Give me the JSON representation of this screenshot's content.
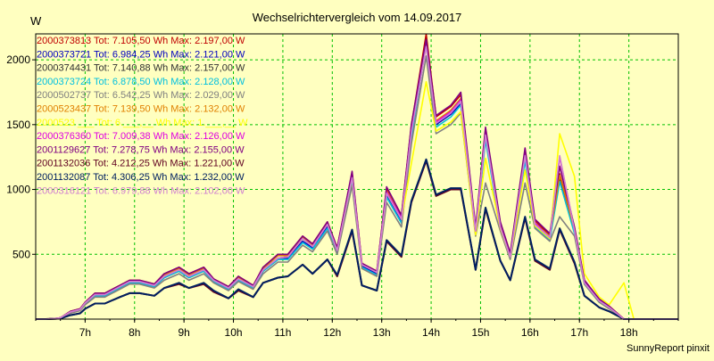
{
  "chart_data": {
    "type": "line",
    "title": "Wechselrichtervergleich vom 14.09.2017",
    "ylabel": "W",
    "footer": "SunnyReport pinxit",
    "xlim": [
      6.0,
      19.0
    ],
    "ylim": [
      0,
      2200
    ],
    "xticks": [
      {
        "x": 7,
        "label": "7h"
      },
      {
        "x": 8,
        "label": "8h"
      },
      {
        "x": 9,
        "label": "9h"
      },
      {
        "x": 10,
        "label": "10h"
      },
      {
        "x": 11,
        "label": "11h"
      },
      {
        "x": 12,
        "label": "12h"
      },
      {
        "x": 13,
        "label": "13h"
      },
      {
        "x": 14,
        "label": "14h"
      },
      {
        "x": 15,
        "label": "15h"
      },
      {
        "x": 16,
        "label": "16h"
      },
      {
        "x": 17,
        "label": "17h"
      },
      {
        "x": 18,
        "label": "18h"
      }
    ],
    "yticks": [
      {
        "y": 500,
        "label": "500"
      },
      {
        "y": 1000,
        "label": "1000"
      },
      {
        "y": 1500,
        "label": "1500"
      },
      {
        "y": 2000,
        "label": "2000"
      }
    ],
    "grid": true,
    "legend_position": "top-left",
    "x": [
      6.0,
      6.2,
      6.4,
      6.5,
      6.7,
      6.9,
      7.0,
      7.2,
      7.4,
      7.7,
      7.9,
      8.1,
      8.4,
      8.6,
      8.9,
      9.1,
      9.4,
      9.6,
      9.9,
      10.1,
      10.4,
      10.6,
      10.9,
      11.1,
      11.4,
      11.6,
      11.9,
      12.1,
      12.4,
      12.6,
      12.9,
      13.1,
      13.4,
      13.6,
      13.9,
      14.1,
      14.4,
      14.6,
      14.9,
      15.1,
      15.4,
      15.6,
      15.9,
      16.1,
      16.4,
      16.6,
      16.9,
      17.1,
      17.4,
      17.6,
      17.9,
      18.1,
      18.3,
      18.5,
      19.0
    ],
    "series": [
      {
        "name": "2000373813",
        "label": "2000373813 Tot: 7.105,50 Wh Max: 2.197,00 W",
        "color": "#c00000",
        "values": [
          0,
          0,
          5,
          10,
          60,
          80,
          130,
          200,
          200,
          260,
          300,
          300,
          270,
          350,
          400,
          350,
          400,
          310,
          250,
          330,
          260,
          400,
          500,
          500,
          640,
          580,
          750,
          550,
          1130,
          430,
          370,
          1010,
          800,
          1490,
          2197,
          1560,
          1640,
          1730,
          700,
          1460,
          740,
          500,
          1300,
          760,
          650,
          1120,
          700,
          300,
          150,
          100,
          0,
          0,
          0,
          0,
          0
        ]
      },
      {
        "name": "2000373721",
        "label": "2000373721 Tot: 6.984,25 Wh Max: 2.121,00 W",
        "color": "#0000c0",
        "values": [
          0,
          0,
          5,
          10,
          50,
          70,
          120,
          180,
          180,
          240,
          280,
          280,
          250,
          320,
          370,
          320,
          370,
          290,
          230,
          300,
          240,
          370,
          460,
          470,
          600,
          550,
          710,
          520,
          1080,
          410,
          350,
          960,
          760,
          1420,
          2121,
          1500,
          1580,
          1660,
          670,
          1400,
          710,
          480,
          1240,
          720,
          620,
          1080,
          670,
          280,
          140,
          90,
          0,
          0,
          0,
          0,
          0
        ]
      },
      {
        "name": "2000374431",
        "label": "2000374431 Tot: 7.140,88 Wh Max: 2.157,00 W",
        "color": "#303030",
        "values": [
          0,
          0,
          5,
          10,
          55,
          75,
          125,
          190,
          190,
          250,
          290,
          290,
          260,
          330,
          380,
          330,
          380,
          300,
          240,
          310,
          250,
          380,
          470,
          480,
          620,
          560,
          730,
          530,
          1100,
          420,
          360,
          980,
          780,
          1450,
          2157,
          1520,
          1610,
          1700,
          690,
          1430,
          720,
          490,
          1270,
          740,
          640,
          1100,
          690,
          290,
          145,
          95,
          0,
          0,
          0,
          0,
          0
        ]
      },
      {
        "name": "2000373724",
        "label": "2000373724 Tot: 6.878,50 Wh Max: 2.128,00 W",
        "color": "#00c0e0",
        "values": [
          0,
          0,
          4,
          8,
          50,
          70,
          120,
          180,
          180,
          240,
          280,
          280,
          250,
          320,
          370,
          320,
          370,
          290,
          230,
          300,
          240,
          370,
          460,
          460,
          590,
          540,
          700,
          510,
          1060,
          400,
          340,
          940,
          740,
          1400,
          2128,
          1480,
          1560,
          1650,
          660,
          1380,
          700,
          470,
          1220,
          710,
          610,
          1060,
          660,
          270,
          130,
          85,
          0,
          0,
          0,
          0,
          0
        ]
      },
      {
        "name": "2000502737",
        "label": "2000502737 Tot: 6.542,25 Wh Max: 2.029,00 W",
        "color": "#808080",
        "values": [
          0,
          0,
          4,
          8,
          45,
          65,
          110,
          170,
          170,
          230,
          270,
          270,
          240,
          300,
          350,
          300,
          350,
          280,
          220,
          290,
          230,
          350,
          440,
          440,
          570,
          520,
          680,
          500,
          1030,
          390,
          330,
          900,
          710,
          1350,
          2029,
          1430,
          1500,
          1590,
          640,
          1050,
          680,
          460,
          1050,
          700,
          600,
          790,
          640,
          270,
          130,
          80,
          0,
          0,
          0,
          0,
          0
        ]
      },
      {
        "name": "2000523437",
        "label": "2000523437 Tot: 7.139,50 Wh Max: 2.132,00 W",
        "color": "#e08000",
        "values": [
          0,
          0,
          5,
          10,
          60,
          80,
          130,
          200,
          200,
          260,
          300,
          300,
          270,
          340,
          390,
          340,
          390,
          310,
          250,
          320,
          260,
          390,
          490,
          490,
          630,
          570,
          740,
          540,
          1110,
          420,
          360,
          990,
          790,
          1460,
          2132,
          1530,
          1610,
          1700,
          690,
          1440,
          720,
          490,
          1280,
          740,
          640,
          1110,
          690,
          290,
          150,
          100,
          0,
          0,
          0,
          0,
          0
        ]
      },
      {
        "name": "2000523",
        "label": "2000523 ___ Tot: 6.___,__ Wh Max: 1.___,__ W",
        "color": "#ffff00",
        "values": [
          0,
          0,
          5,
          10,
          55,
          75,
          125,
          190,
          190,
          250,
          290,
          290,
          260,
          330,
          380,
          330,
          380,
          300,
          240,
          310,
          250,
          380,
          470,
          480,
          620,
          560,
          730,
          530,
          1090,
          420,
          360,
          970,
          770,
          1200,
          1830,
          1450,
          1520,
          1600,
          650,
          1240,
          700,
          480,
          1150,
          720,
          620,
          1430,
          1100,
          350,
          170,
          110,
          280,
          0,
          0,
          0,
          0
        ]
      },
      {
        "name": "2000376360",
        "label": "2000376360 Tot: 7.009,38 Wh Max: 2.126,00 W",
        "color": "#e000e0",
        "values": [
          0,
          0,
          5,
          10,
          55,
          75,
          125,
          190,
          190,
          250,
          290,
          290,
          260,
          330,
          380,
          330,
          380,
          300,
          240,
          310,
          250,
          380,
          470,
          480,
          620,
          560,
          730,
          530,
          1100,
          420,
          360,
          980,
          780,
          1450,
          2126,
          1520,
          1600,
          1690,
          680,
          1430,
          710,
          490,
          1270,
          740,
          630,
          1250,
          690,
          290,
          145,
          95,
          0,
          0,
          0,
          0,
          0
        ]
      },
      {
        "name": "2001129627",
        "label": "2001129627 Tot: 7.278,75 Wh Max: 2.155,00 W",
        "color": "#800080",
        "values": [
          0,
          0,
          5,
          10,
          60,
          80,
          130,
          200,
          200,
          260,
          300,
          300,
          270,
          350,
          400,
          350,
          400,
          310,
          250,
          330,
          260,
          400,
          500,
          500,
          640,
          580,
          750,
          550,
          1140,
          430,
          370,
          1020,
          800,
          1500,
          2155,
          1570,
          1650,
          1750,
          710,
          1480,
          750,
          510,
          1320,
          770,
          660,
          1180,
          710,
          300,
          155,
          100,
          0,
          0,
          0,
          0,
          0
        ]
      },
      {
        "name": "2001132036",
        "label": "2001132036 Tot: 4.212,25 Wh Max: 1.221,00 W",
        "color": "#600020",
        "values": [
          0,
          0,
          3,
          5,
          30,
          45,
          80,
          120,
          120,
          170,
          200,
          200,
          180,
          240,
          270,
          240,
          270,
          210,
          160,
          220,
          170,
          280,
          320,
          330,
          420,
          350,
          460,
          330,
          680,
          260,
          220,
          600,
          480,
          900,
          1221,
          950,
          1000,
          1000,
          380,
          850,
          450,
          300,
          780,
          450,
          380,
          690,
          430,
          180,
          90,
          60,
          0,
          0,
          0,
          0,
          0
        ]
      },
      {
        "name": "2001132087",
        "label": "2001132087 Tot: 4.306,25 Wh Max: 1.232,00 W",
        "color": "#002060",
        "values": [
          0,
          0,
          3,
          5,
          30,
          45,
          80,
          120,
          120,
          170,
          200,
          200,
          180,
          240,
          280,
          240,
          280,
          220,
          160,
          230,
          170,
          280,
          320,
          330,
          420,
          350,
          460,
          340,
          690,
          260,
          220,
          610,
          490,
          910,
          1232,
          960,
          1010,
          1010,
          380,
          860,
          450,
          300,
          790,
          460,
          390,
          700,
          440,
          180,
          90,
          60,
          0,
          0,
          0,
          0,
          0
        ]
      },
      {
        "name": "2000316121",
        "label": "2000316121 Tot: 6.979,88 Wh Max: 2.102,00 W",
        "color": "#d080d0",
        "values": [
          0,
          0,
          5,
          10,
          55,
          75,
          125,
          190,
          190,
          250,
          290,
          290,
          260,
          330,
          380,
          330,
          380,
          300,
          240,
          310,
          250,
          380,
          470,
          480,
          620,
          560,
          730,
          530,
          1090,
          420,
          360,
          970,
          770,
          1440,
          2102,
          1510,
          1590,
          1680,
          680,
          1420,
          710,
          480,
          1260,
          730,
          630,
          1260,
          680,
          280,
          140,
          90,
          0,
          0,
          0,
          0,
          0
        ]
      }
    ]
  }
}
